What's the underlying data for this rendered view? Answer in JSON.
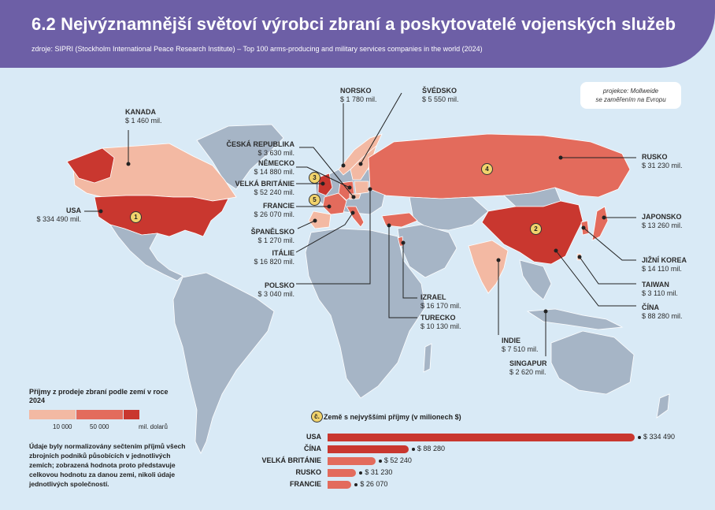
{
  "header": {
    "title": "6.2 Nejvýznamnější světoví výrobci zbraní a poskytovatelé vojenských služeb",
    "source": "zdroje: SIPRI (Stockholm International Peace Research Institute) – Top 100 arms-producing and military services companies in the world (2024)"
  },
  "projection": {
    "line1": "projekce: Mollweide",
    "line2": "se zaměřením na Evropu"
  },
  "colors": {
    "background": "#d9eaf6",
    "land": "#a6b5c6",
    "header": "#6d5fa6",
    "low": "#f3b9a3",
    "mid": "#e36b5c",
    "high": "#c9372f",
    "badge": "#f1d36c"
  },
  "countries": [
    {
      "key": "usa",
      "name": "USA",
      "value": "$ 334 490 mil.",
      "rank": "1",
      "tier": "high"
    },
    {
      "key": "canada",
      "name": "KANADA",
      "value": "$ 1 460 mil.",
      "tier": "low"
    },
    {
      "key": "norway",
      "name": "NORSKO",
      "value": "$ 1 780 mil.",
      "tier": "low"
    },
    {
      "key": "sweden",
      "name": "ŠVÉDSKO",
      "value": "$ 5 550 mil.",
      "tier": "low"
    },
    {
      "key": "czech",
      "name": "ČESKÁ REPUBLIKA",
      "value": "$ 3 630 mil.",
      "tier": "low"
    },
    {
      "key": "germany",
      "name": "NĚMECKO",
      "value": "$ 14 880 mil.",
      "tier": "mid"
    },
    {
      "key": "uk",
      "name": "VELKÁ BRITÁNIE",
      "value": "$ 52 240 mil.",
      "rank": "3",
      "tier": "high"
    },
    {
      "key": "france",
      "name": "FRANCIE",
      "value": "$ 26 070 mil.",
      "rank": "5",
      "tier": "mid"
    },
    {
      "key": "spain",
      "name": "ŠPANĚLSKO",
      "value": "$ 1 270 mil.",
      "tier": "low"
    },
    {
      "key": "italy",
      "name": "ITÁLIE",
      "value": "$ 16 820 mil.",
      "tier": "mid"
    },
    {
      "key": "poland",
      "name": "POLSKO",
      "value": "$ 3 040 mil.",
      "tier": "low"
    },
    {
      "key": "israel",
      "name": "IZRAEL",
      "value": "$ 16 170 mil.",
      "tier": "mid"
    },
    {
      "key": "turkey",
      "name": "TURECKO",
      "value": "$ 10 130 mil.",
      "tier": "mid"
    },
    {
      "key": "india",
      "name": "INDIE",
      "value": "$ 7 510 mil.",
      "tier": "low"
    },
    {
      "key": "singapore",
      "name": "SINGAPUR",
      "value": "$ 2 620 mil.",
      "tier": "low"
    },
    {
      "key": "russia",
      "name": "RUSKO",
      "value": "$ 31 230 mil.",
      "rank": "4",
      "tier": "mid"
    },
    {
      "key": "japan",
      "name": "JAPONSKO",
      "value": "$ 13 260 mil.",
      "tier": "mid"
    },
    {
      "key": "south_korea",
      "name": "JIŽNÍ KOREA",
      "value": "$ 14 110 mil.",
      "tier": "mid"
    },
    {
      "key": "taiwan",
      "name": "TAIWAN",
      "value": "$ 3 110 mil.",
      "tier": "low"
    },
    {
      "key": "china",
      "name": "ČÍNA",
      "value": "$ 88 280 mil.",
      "rank": "2",
      "tier": "high"
    }
  ],
  "legend": {
    "title": "Příjmy z prodeje zbraní podle zemí v roce 2024",
    "tick1": "10 000",
    "tick2": "50 000",
    "unit": "mil. dolarů",
    "note": "Údaje byly normalizovány sečtením příjmů všech zbrojních podniků působících v jednotlivých zemích; zobrazená hodnota proto představuje celkovou hodnotu za danou zemi, nikoli údaje jednotlivých společností."
  },
  "top5": {
    "badge": "č.",
    "title": "Země s nejvyššími příjmy (v milionech $)",
    "max": 334490
  },
  "chart_data": {
    "type": "bar",
    "title": "Země s nejvyššími příjmy (v milionech $)",
    "categories": [
      "USA",
      "ČÍNA",
      "VELKÁ BRITÁNIE",
      "RUSKO",
      "FRANCIE"
    ],
    "values": [
      334490,
      88280,
      52240,
      31230,
      26070
    ],
    "value_labels": [
      "$ 334 490",
      "$ 88 280",
      "$ 52 240",
      "$ 31 230",
      "$ 26 070"
    ]
  }
}
